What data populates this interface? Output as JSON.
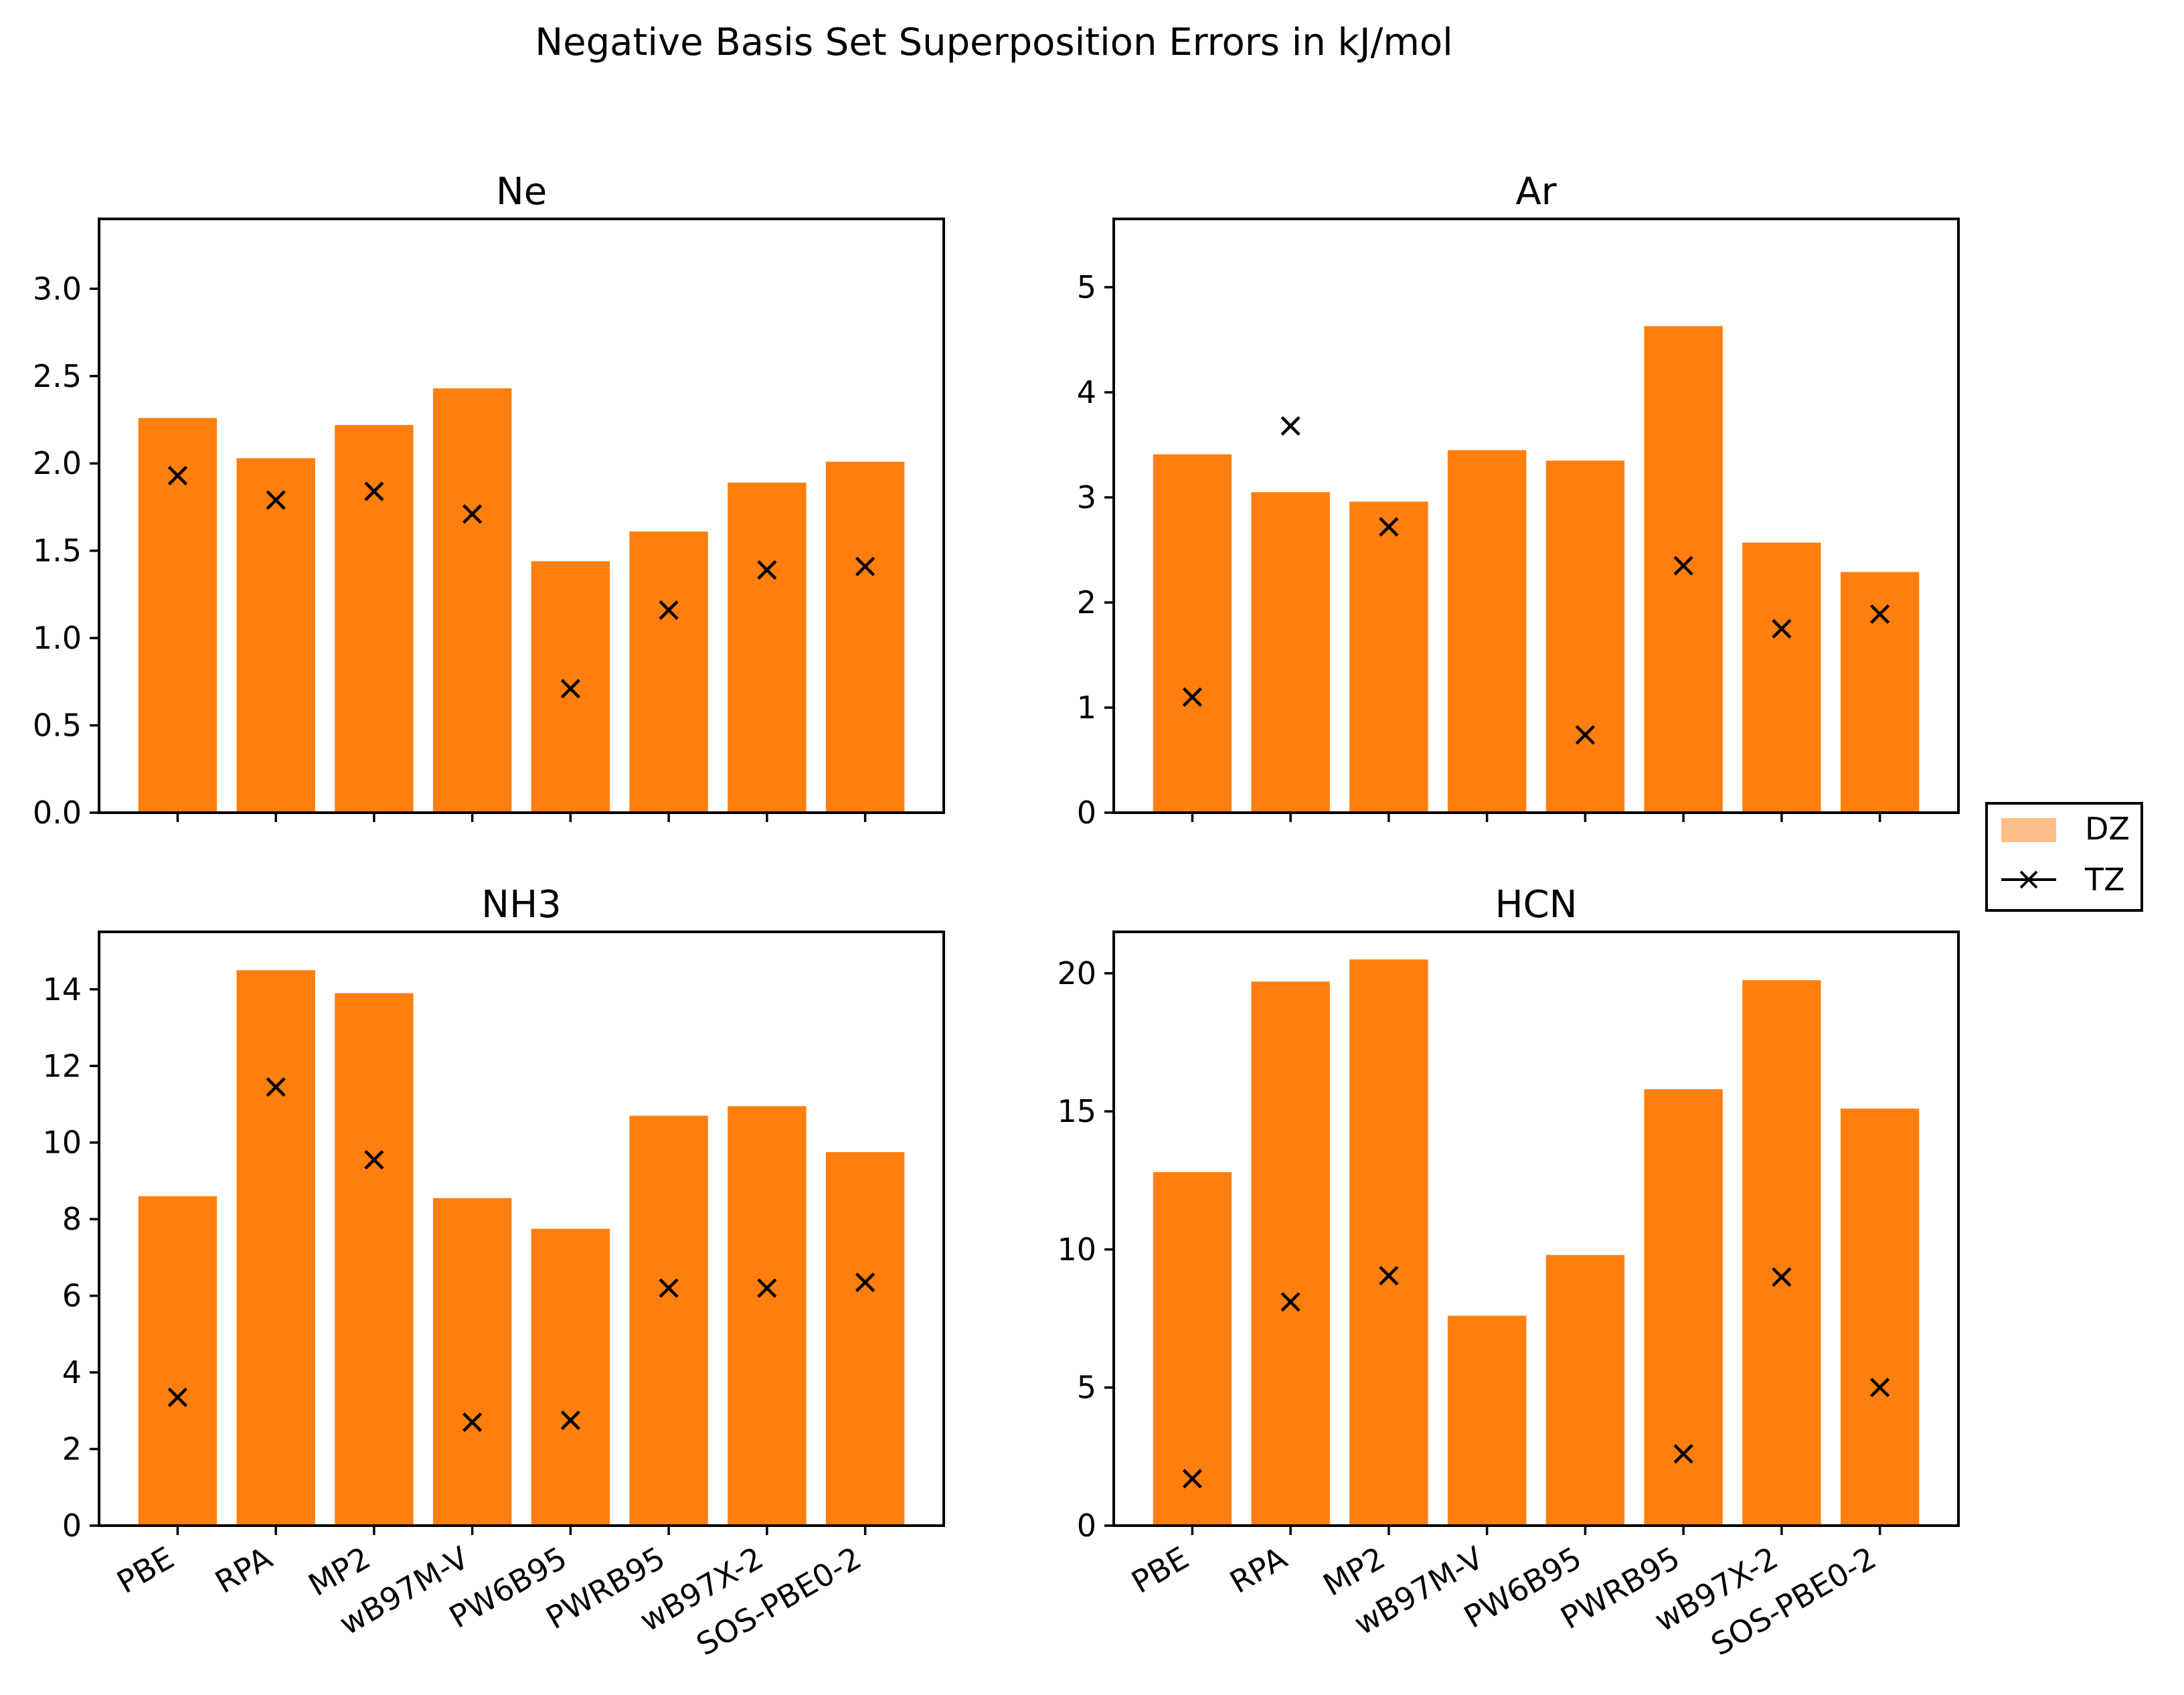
{
  "chart_data": {
    "type": "bar",
    "title": "Negative Basis Set Superposition Errors in kJ/mol",
    "categories": [
      "PBE",
      "RPA",
      "MP2",
      "wB97M-V",
      "PW6B95",
      "PWRB95",
      "wB97X-2",
      "SOS-PBE0-2"
    ],
    "legend": {
      "placement": "right-center",
      "entries": [
        {
          "label": "DZ",
          "kind": "bar"
        },
        {
          "label": "TZ",
          "kind": "marker-line"
        }
      ]
    },
    "colors": {
      "bar": "#ff7f0e",
      "legend_bar": "#ffbf86",
      "marker": "#000000"
    },
    "panels": [
      {
        "title": "Ne",
        "ylim": [
          0,
          3.4
        ],
        "yticks": [
          0,
          0.5,
          1.0,
          1.5,
          2.0,
          2.5,
          3.0
        ],
        "ytick_labels": [
          "0.0",
          "0.5",
          "1.0",
          "1.5",
          "2.0",
          "2.5",
          "3.0"
        ],
        "show_xlabels": false,
        "series": [
          {
            "name": "DZ",
            "values": [
              2.26,
              2.03,
              2.22,
              2.43,
              1.44,
              1.61,
              1.89,
              2.01
            ]
          },
          {
            "name": "TZ",
            "values": [
              1.93,
              1.79,
              1.84,
              1.71,
              0.71,
              1.16,
              1.39,
              1.41
            ]
          }
        ]
      },
      {
        "title": "Ar",
        "ylim": [
          0,
          5.65
        ],
        "yticks": [
          0,
          1,
          2,
          3,
          4,
          5
        ],
        "ytick_labels": [
          "0",
          "1",
          "2",
          "3",
          "4",
          "5"
        ],
        "show_xlabels": false,
        "series": [
          {
            "name": "DZ",
            "values": [
              3.41,
              3.05,
              2.96,
              3.45,
              3.35,
              4.63,
              2.57,
              2.29
            ]
          },
          {
            "name": "TZ",
            "values": [
              1.1,
              3.68,
              2.72,
              null,
              0.74,
              2.35,
              1.75,
              1.89
            ]
          }
        ]
      },
      {
        "title": "NH3",
        "ylim": [
          0,
          15.5
        ],
        "yticks": [
          0,
          2,
          4,
          6,
          8,
          10,
          12,
          14
        ],
        "ytick_labels": [
          "0",
          "2",
          "4",
          "6",
          "8",
          "10",
          "12",
          "14"
        ],
        "show_xlabels": true,
        "series": [
          {
            "name": "DZ",
            "values": [
              8.6,
              14.5,
              13.9,
              8.55,
              7.75,
              10.7,
              10.95,
              9.75
            ]
          },
          {
            "name": "TZ",
            "values": [
              3.35,
              11.45,
              9.55,
              2.7,
              2.75,
              6.2,
              6.2,
              6.35
            ]
          }
        ]
      },
      {
        "title": "HCN",
        "ylim": [
          0,
          21.5
        ],
        "yticks": [
          0,
          5,
          10,
          15,
          20
        ],
        "ytick_labels": [
          "0",
          "5",
          "10",
          "15",
          "20"
        ],
        "show_xlabels": true,
        "series": [
          {
            "name": "DZ",
            "values": [
              12.8,
              19.7,
              20.5,
              7.6,
              9.8,
              15.8,
              19.75,
              15.1
            ]
          },
          {
            "name": "TZ",
            "values": [
              1.7,
              8.1,
              9.05,
              null,
              null,
              2.6,
              9.0,
              5.0
            ]
          }
        ]
      }
    ]
  }
}
